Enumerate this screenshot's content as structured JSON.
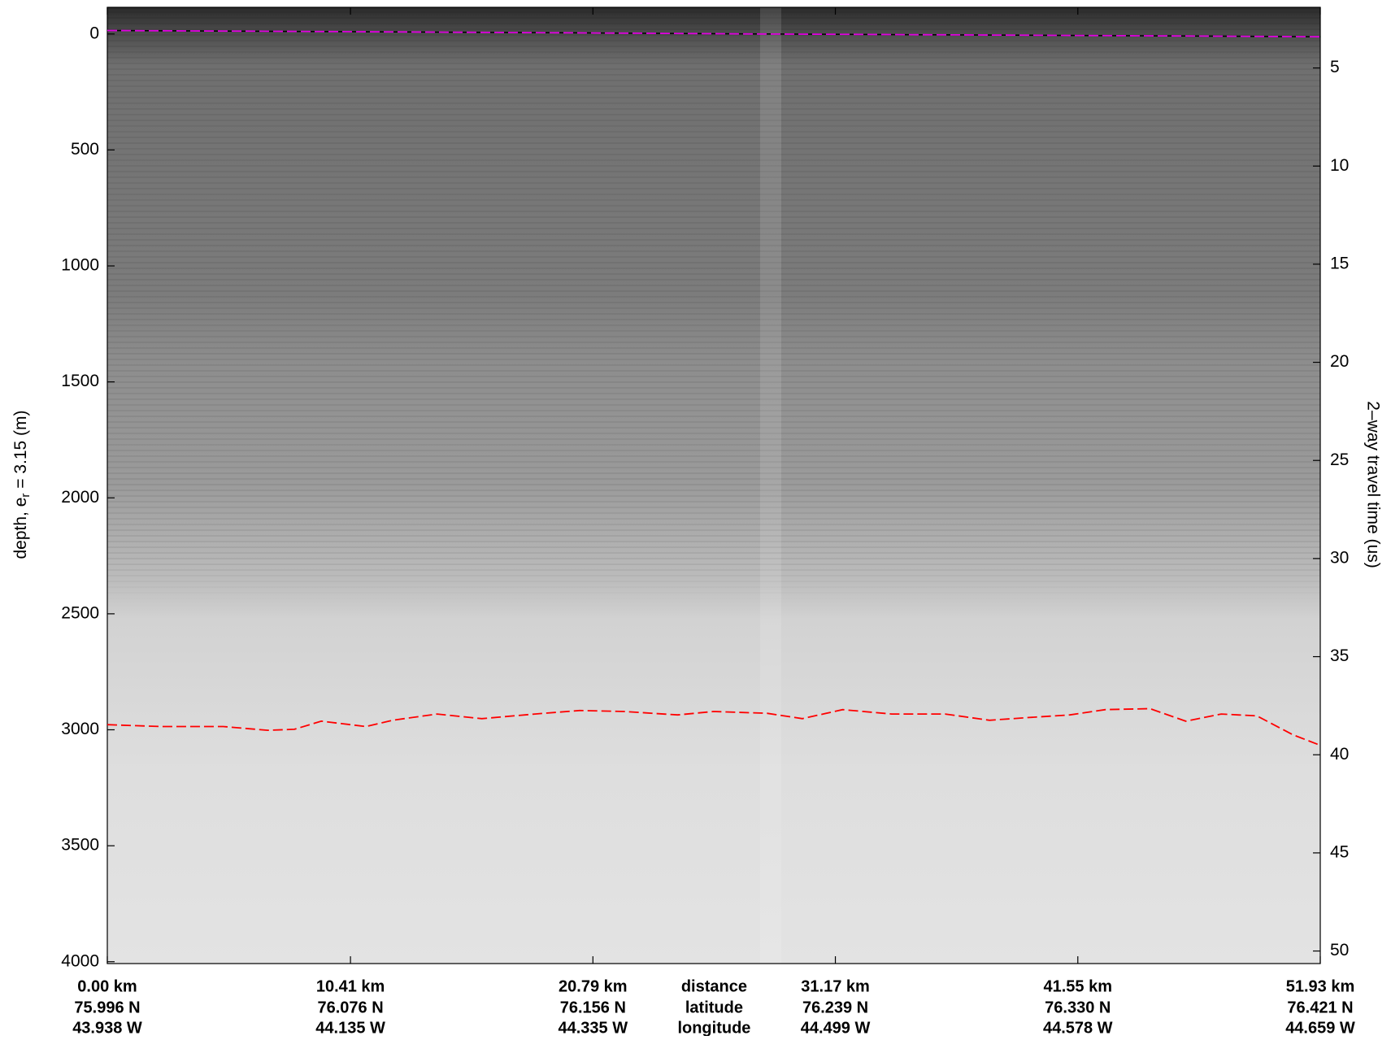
{
  "chart_data": {
    "type": "line",
    "y_inverted": true,
    "xlim": [
      0,
      51.93
    ],
    "xticks": [
      {
        "value": 0,
        "label": "0.00 km"
      },
      {
        "value": 10.41,
        "label": "10.41 km"
      },
      {
        "value": 20.79,
        "label": "20.79 km"
      },
      {
        "value": 31.17,
        "label": "31.17 km"
      },
      {
        "value": 41.55,
        "label": "41.55 km"
      },
      {
        "value": 51.93,
        "label": "51.93 km"
      }
    ],
    "latitude_labels": [
      "75.996 N",
      "76.076 N",
      "76.156 N",
      "76.239 N",
      "76.330 N",
      "76.421 N"
    ],
    "longitude_labels": [
      "43.938 W",
      "44.135 W",
      "44.335 W",
      "44.499 W",
      "44.578 W",
      "44.659 W"
    ],
    "row_labels": [
      "distance",
      "latitude",
      "longitude"
    ],
    "ylim": [
      -115,
      4008
    ],
    "yticks": [
      0,
      500,
      1000,
      1500,
      2000,
      2500,
      3000,
      3500,
      4000
    ],
    "y_label": {
      "before": "depth, e",
      "sub": "r",
      "after": " = 3.15 (m)"
    },
    "y2lim": [
      1.91,
      50.64
    ],
    "y2ticks": [
      5,
      10,
      15,
      20,
      25,
      30,
      35,
      40,
      45,
      50
    ],
    "y2_label": "2–way travel time (us)",
    "series": [
      {
        "color": "#e000e0",
        "x": [
          0,
          10,
          20,
          28,
          35,
          45,
          51.93
        ],
        "values": [
          -15,
          -10,
          -5,
          0,
          3,
          8,
          12
        ]
      },
      {
        "color": "#ff0000",
        "x": [
          0,
          2.29,
          4.96,
          6.87,
          8.01,
          9.16,
          11.07,
          12.21,
          14.12,
          16.03,
          18.31,
          20.22,
          22.13,
          24.42,
          25.95,
          28.24,
          29.76,
          31.48,
          33.58,
          35.87,
          37.77,
          39.3,
          41.21,
          42.73,
          44.64,
          46.17,
          47.69,
          49.22,
          50.75,
          51.93
        ],
        "values": [
          2978,
          2986,
          2986,
          3002,
          2998,
          2963,
          2986,
          2959,
          2932,
          2952,
          2932,
          2917,
          2921,
          2936,
          2921,
          2929,
          2952,
          2913,
          2932,
          2932,
          2959,
          2948,
          2936,
          2913,
          2909,
          2963,
          2932,
          2940,
          3021,
          3067
        ]
      }
    ]
  }
}
